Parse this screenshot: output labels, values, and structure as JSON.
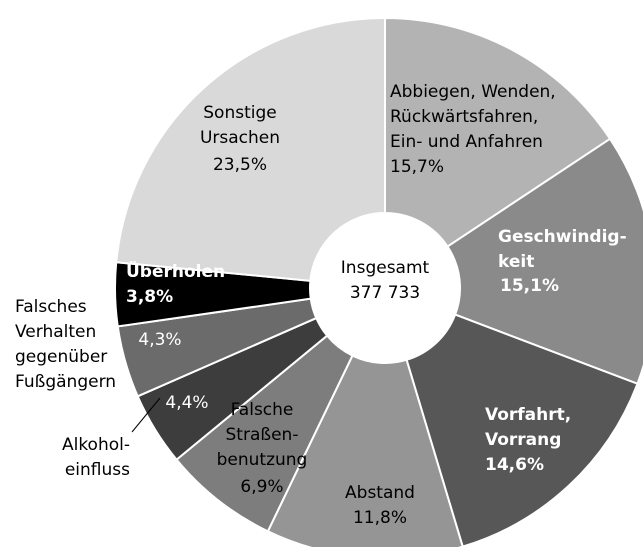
{
  "chart_data": {
    "type": "donut",
    "categories": [
      [
        "Abbiegen, Wenden,",
        "Rückwärtsfahren,",
        "Ein- und Anfahren"
      ],
      [
        "Geschwindig-",
        "keit"
      ],
      [
        "Vorfahrt,",
        "Vorrang"
      ],
      [
        "Abstand"
      ],
      [
        "Falsche",
        "Straßen-",
        "benutzung"
      ],
      [
        "Alkohol-",
        "einfluss"
      ],
      [
        "Falsches",
        "Verhalten",
        "gegenüber",
        "Fußgängern"
      ],
      [
        "Überholen"
      ],
      [
        "Sonstige",
        "Ursachen"
      ]
    ],
    "values": [
      15.7,
      15.1,
      14.6,
      11.8,
      6.9,
      4.4,
      4.3,
      3.8,
      23.5
    ],
    "value_labels": [
      "15,7%",
      "15,1%",
      "14,6%",
      "11,8%",
      "6,9%",
      "4,4%",
      "4,3%",
      "3,8%",
      "23,5%"
    ],
    "colors": [
      "#b3b3b3",
      "#8a8a8a",
      "#575757",
      "#959595",
      "#7d7d7d",
      "#3d3d3d",
      "#6b6b6b",
      "#000000",
      "#d9d9d9"
    ],
    "center_text": [
      "Insgesamt",
      "377 733"
    ]
  }
}
